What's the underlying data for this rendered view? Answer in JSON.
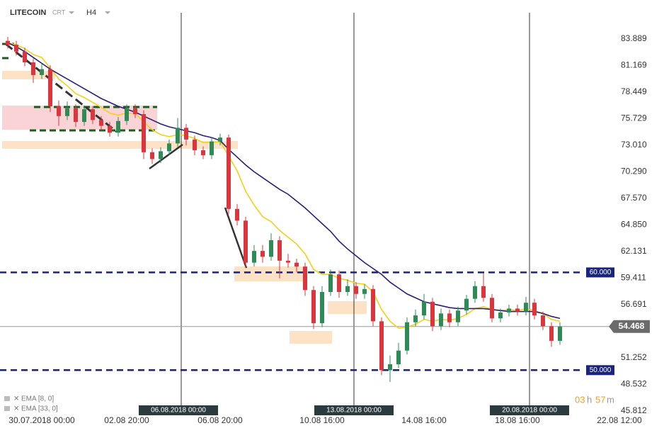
{
  "header": {
    "symbol": "LITECOIN",
    "quote": "CRT",
    "timeframe": "H4"
  },
  "chart_data": {
    "type": "candlestick",
    "categories": [
      null,
      null,
      null,
      null,
      "30.07.2018 00:00",
      null,
      null,
      null,
      null,
      null,
      null,
      null,
      null,
      null,
      "02.08 20:00",
      null,
      null,
      null,
      null,
      null,
      null,
      null,
      null,
      null,
      null,
      "06.08 20:00",
      null,
      null,
      null,
      null,
      null,
      null,
      null,
      null,
      null,
      null,
      null,
      "10.08 16:00",
      null,
      null,
      null,
      null,
      null,
      null,
      null,
      null,
      null,
      null,
      null,
      "14.08 16:00",
      null,
      null,
      null,
      null,
      null,
      null,
      null,
      null,
      null,
      null,
      "18.08 16:00",
      null,
      null,
      null,
      null,
      null,
      null,
      null,
      null,
      null,
      null,
      null,
      "22.08 12:00"
    ],
    "open": [
      83.7,
      83.3,
      82.6,
      81.5,
      80.2,
      80.8,
      77.0,
      76.0,
      76.8,
      75.4,
      76.7,
      75.6,
      75.0,
      74.3,
      75.5,
      76.8,
      76.2,
      72.3,
      71.6,
      72.4,
      73.2,
      74.8,
      73.6,
      72.5,
      72.0,
      73.4,
      73.8,
      66.5,
      65.3,
      61.0,
      62.2,
      61.6,
      63.3,
      61.2,
      61.0,
      60.6,
      58.2,
      54.8,
      58.0,
      59.8,
      58.0,
      58.6,
      57.8,
      58.3,
      55.0,
      50.0,
      50.6,
      52.0,
      54.9,
      55.6,
      57.0,
      54.5,
      55.8,
      54.9,
      56.1,
      57.3,
      58.6,
      57.4,
      55.3,
      55.9,
      56.3,
      56.0,
      56.9,
      55.6,
      54.5,
      53.0,
      null,
      null,
      null,
      null,
      null,
      null,
      null
    ],
    "high": [
      84.1,
      83.7,
      83.0,
      81.9,
      81.4,
      81.2,
      77.6,
      77.5,
      77.2,
      77.1,
      77.0,
      76.0,
      75.4,
      75.9,
      77.2,
      77.2,
      76.6,
      72.7,
      72.8,
      73.6,
      75.8,
      75.2,
      74.0,
      72.9,
      73.8,
      74.2,
      74.1,
      67.0,
      65.7,
      62.8,
      62.8,
      64.0,
      63.7,
      61.9,
      61.4,
      61.0,
      58.6,
      58.6,
      60.3,
      60.2,
      59.3,
      59.0,
      58.8,
      58.7,
      55.4,
      51.5,
      52.8,
      55.4,
      56.2,
      57.8,
      57.4,
      56.3,
      56.2,
      56.5,
      57.7,
      59.1,
      59.9,
      57.8,
      56.3,
      56.7,
      56.7,
      57.5,
      57.3,
      56.0,
      54.9,
      54.9,
      null,
      null,
      null,
      null,
      null,
      null,
      null
    ],
    "low": [
      82.9,
      82.2,
      81.1,
      79.4,
      79.8,
      76.4,
      75.0,
      75.6,
      74.9,
      75.0,
      75.2,
      74.5,
      73.9,
      73.9,
      75.1,
      75.8,
      71.6,
      71.1,
      71.2,
      72.0,
      72.8,
      73.0,
      72.0,
      71.6,
      71.6,
      73.0,
      66.0,
      64.8,
      60.5,
      60.6,
      61.0,
      61.2,
      59.4,
      60.5,
      60.0,
      57.6,
      54.2,
      54.4,
      57.6,
      57.4,
      57.6,
      57.3,
      57.3,
      54.5,
      49.5,
      48.8,
      50.2,
      51.6,
      54.5,
      55.2,
      54.0,
      54.1,
      54.4,
      54.5,
      55.7,
      56.9,
      57.0,
      54.9,
      54.9,
      55.5,
      55.6,
      55.6,
      55.2,
      54.1,
      52.4,
      52.6,
      null,
      null,
      null,
      null,
      null,
      null,
      null
    ],
    "close": [
      83.3,
      82.6,
      81.5,
      80.2,
      80.8,
      77.0,
      76.0,
      76.8,
      75.4,
      76.7,
      75.6,
      75.0,
      74.3,
      75.5,
      76.8,
      76.2,
      72.3,
      71.6,
      72.4,
      73.2,
      74.8,
      73.6,
      72.5,
      72.0,
      73.4,
      73.8,
      66.5,
      65.3,
      61.0,
      62.2,
      61.6,
      63.3,
      61.2,
      61.0,
      60.6,
      58.2,
      54.8,
      58.0,
      59.8,
      58.0,
      58.6,
      57.8,
      58.3,
      55.0,
      50.0,
      50.6,
      52.0,
      54.9,
      55.6,
      57.0,
      54.5,
      55.8,
      54.9,
      56.1,
      57.3,
      58.6,
      57.4,
      55.3,
      55.9,
      56.3,
      56.0,
      56.9,
      55.6,
      54.5,
      53.0,
      54.468,
      null,
      null,
      null,
      null,
      null,
      null,
      null
    ],
    "up_color": "#2e8b57",
    "down_color": "#d9363e",
    "series": [
      {
        "name": "EMA [8, 0]",
        "color": "#f5cf1b",
        "values": [
          83.5,
          83.3,
          82.9,
          82.3,
          82.0,
          80.9,
          79.8,
          79.1,
          78.3,
          77.9,
          77.4,
          76.9,
          76.3,
          76.1,
          76.3,
          76.3,
          75.4,
          74.6,
          74.1,
          73.9,
          74.1,
          74.0,
          73.7,
          73.3,
          73.3,
          73.4,
          71.9,
          70.4,
          68.3,
          66.9,
          65.7,
          65.2,
          64.3,
          63.6,
          62.9,
          61.9,
          60.3,
          59.8,
          59.8,
          59.4,
          59.2,
          58.9,
          58.8,
          58.0,
          56.2,
          55.0,
          54.3,
          54.4,
          54.7,
          55.2,
          55.0,
          55.2,
          55.1,
          55.3,
          55.7,
          56.3,
          56.5,
          56.2,
          56.1,
          56.2,
          56.1,
          56.3,
          56.1,
          55.8,
          55.2,
          55.0,
          null,
          null,
          null,
          null,
          null,
          null,
          null
        ]
      },
      {
        "name": "EMA [33, 0]",
        "color": "#2b1d7a",
        "values": [
          83.5,
          83.1,
          82.6,
          82.0,
          81.4,
          80.8,
          80.3,
          79.8,
          79.3,
          78.8,
          78.3,
          77.8,
          77.4,
          77.0,
          76.7,
          76.4,
          76.0,
          75.6,
          75.2,
          74.9,
          74.7,
          74.5,
          74.3,
          74.0,
          73.8,
          73.5,
          72.6,
          71.8,
          71.0,
          70.3,
          69.7,
          69.1,
          68.5,
          68.0,
          67.3,
          66.6,
          65.8,
          65.0,
          64.2,
          63.2,
          62.4,
          61.7,
          61.0,
          60.4,
          59.8,
          59.0,
          58.4,
          57.8,
          57.4,
          57.0,
          56.8,
          56.6,
          56.4,
          56.3,
          56.3,
          56.3,
          56.3,
          56.2,
          56.1,
          56.0,
          56.0,
          56.0,
          56.0,
          55.8,
          55.5,
          55.3,
          null,
          null,
          null,
          null,
          null,
          null,
          null
        ]
      }
    ],
    "ylim": [
      45.09,
      87.88
    ],
    "yticks": [
      83.889,
      81.169,
      78.449,
      75.729,
      {
        "value": 73.01,
        "label": "73.010"
      },
      {
        "value": 70.29,
        "label": "70.290"
      },
      {
        "value": 67.57,
        "label": "67.570"
      },
      {
        "value": 64.85,
        "label": "64.850"
      },
      62.131,
      59.411,
      56.691,
      51.252,
      48.532,
      45.812
    ],
    "levels": [
      {
        "value": 60,
        "label": "60.000"
      },
      {
        "value": 50,
        "label": "50.000"
      }
    ],
    "level_color": "#1a237e",
    "last_price": 54.468,
    "markers": [
      "06.08.2018 00:00",
      "13.08.2018 00:00",
      "20.08.2018 00:00"
    ],
    "timer": {
      "hours": "03",
      "h": "h",
      "minutes": "57",
      "m": "m"
    }
  }
}
